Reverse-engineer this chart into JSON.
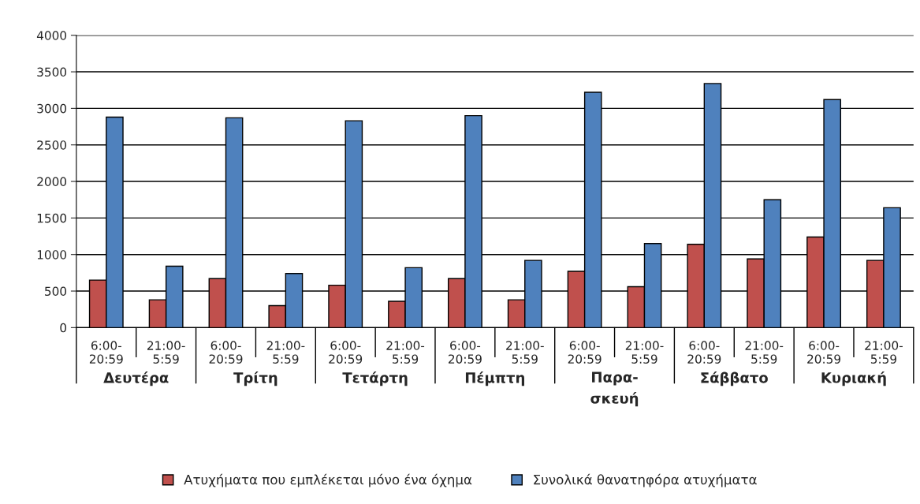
{
  "chart_data": {
    "type": "bar",
    "categories": [
      "6:00-20:59",
      "21:00-5:59",
      "6:00-20:59",
      "21:00-5:59",
      "6:00-20:59",
      "21:00-5:59",
      "6:00-20:59",
      "21:00-5:59",
      "6:00-20:59",
      "21:00-5:59",
      "6:00-20:59",
      "21:00-5:59",
      "6:00-20:59",
      "21:00-5:59"
    ],
    "series": [
      {
        "name": "Ατυχήματα που εμπλέκεται μόνο ένα όχημα",
        "color": "#c0504d",
        "values": [
          650,
          380,
          670,
          300,
          580,
          360,
          670,
          380,
          770,
          560,
          1140,
          940,
          1240,
          920
        ]
      },
      {
        "name": "Συνολικά θανατηφόρα ατυχήματα",
        "color": "#4f81bd",
        "values": [
          2880,
          840,
          2870,
          740,
          2830,
          820,
          2900,
          920,
          3220,
          1150,
          3340,
          1750,
          3120,
          1640
        ]
      }
    ],
    "annotations": [
      "Δευτέρα",
      "Τρίτη",
      "Τετάρτη",
      "Πέμπτη",
      "Παρα-σκευή",
      "Σάββατο",
      "Κυριακή"
    ],
    "ylim": [
      0,
      4000
    ],
    "yticks": [
      0,
      500,
      1000,
      1500,
      2000,
      2500,
      3000,
      3500,
      4000
    ],
    "grid": "y",
    "legend": "bottom"
  }
}
